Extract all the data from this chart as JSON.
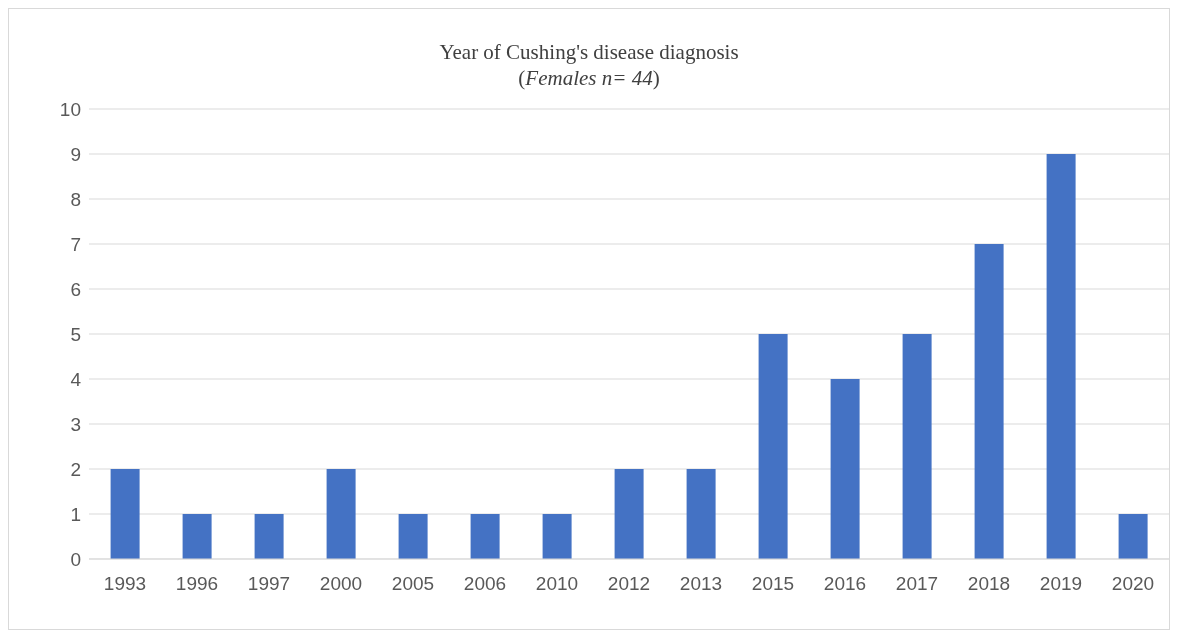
{
  "chart_data": {
    "type": "bar",
    "title": "Year of Cushing's disease diagnosis",
    "subtitle": "(Females n= 44)",
    "categories": [
      "1993",
      "1996",
      "1997",
      "2000",
      "2005",
      "2006",
      "2010",
      "2012",
      "2013",
      "2015",
      "2016",
      "2017",
      "2018",
      "2019",
      "2020"
    ],
    "values": [
      2,
      1,
      1,
      2,
      1,
      1,
      1,
      2,
      2,
      5,
      4,
      5,
      7,
      9,
      1
    ],
    "color": "#4472c4",
    "ylim": [
      0,
      10
    ],
    "yticks": [
      0,
      1,
      2,
      3,
      4,
      5,
      6,
      7,
      8,
      9,
      10
    ],
    "grid": "y",
    "legend": false
  }
}
